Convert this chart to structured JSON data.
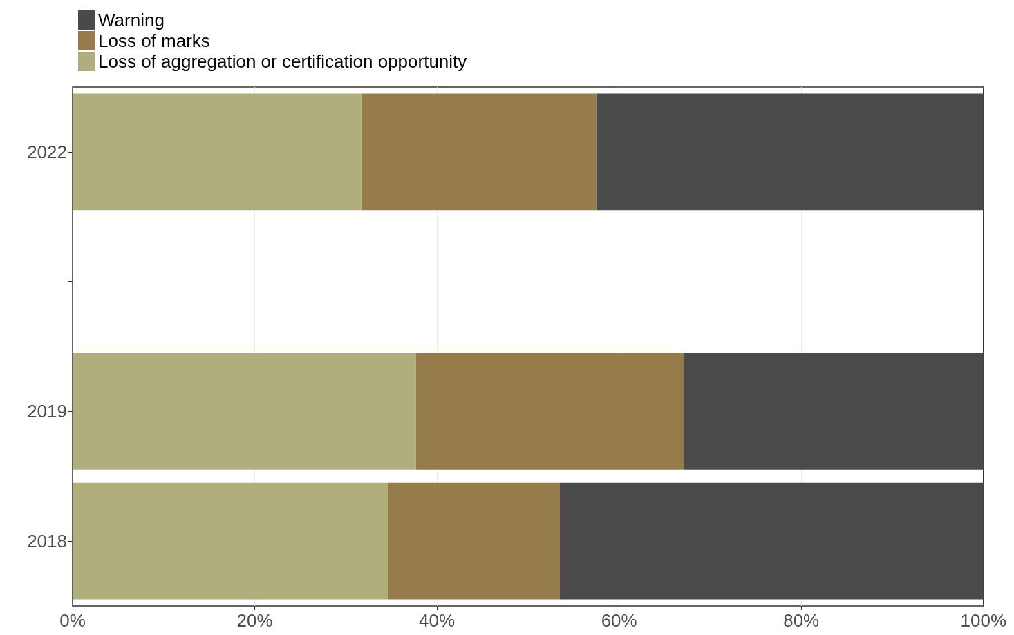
{
  "chart_data": {
    "type": "bar",
    "orientation": "horizontal",
    "stacked": true,
    "categories": [
      "2022",
      null,
      "2019",
      "2018"
    ],
    "series": [
      {
        "name": "Loss of aggregation or certification opportunity",
        "color": "#afae7c",
        "values": [
          31.7,
          null,
          37.7,
          34.6
        ]
      },
      {
        "name": "Loss of marks",
        "color": "#967c4a",
        "values": [
          25.8,
          null,
          29.4,
          18.9
        ]
      },
      {
        "name": "Warning",
        "color": "#4a4a4a",
        "values": [
          42.5,
          null,
          32.9,
          46.5
        ]
      }
    ],
    "xlim": [
      0,
      100
    ],
    "xticks": [
      {
        "value": 0,
        "label": "0%"
      },
      {
        "value": 20,
        "label": "20%"
      },
      {
        "value": 40,
        "label": "40%"
      },
      {
        "value": 60,
        "label": "60%"
      },
      {
        "value": 80,
        "label": "80%"
      },
      {
        "value": 100,
        "label": "100%"
      }
    ],
    "grid": "x",
    "legend": "top left"
  }
}
